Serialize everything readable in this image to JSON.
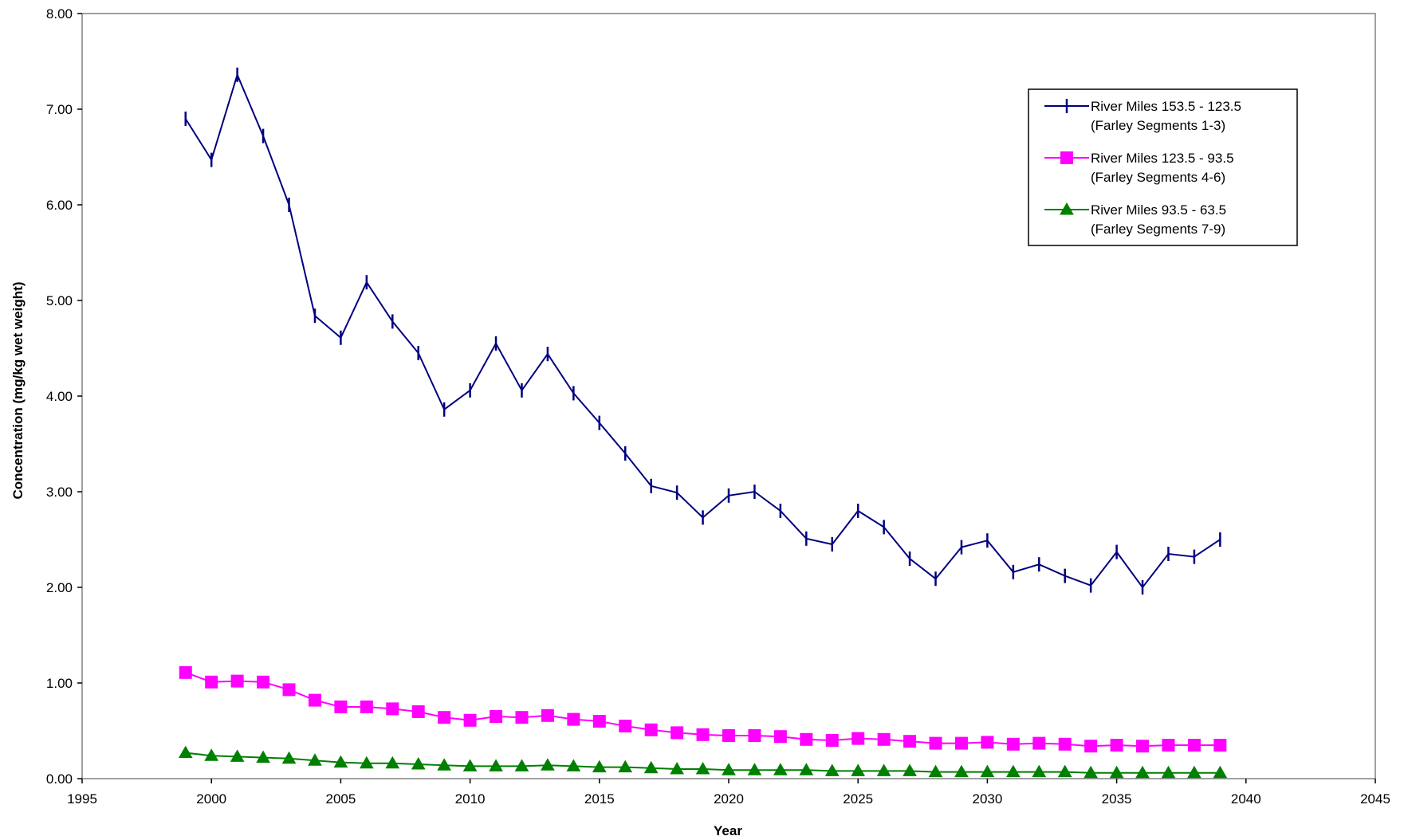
{
  "chart_data": {
    "type": "line",
    "title": "",
    "xlabel": "Year",
    "ylabel": "Concentration (mg/kg wet weight)",
    "xlim": [
      1995,
      2045
    ],
    "ylim": [
      0,
      8
    ],
    "x_ticks": [
      "1995",
      "2000",
      "2005",
      "2010",
      "2015",
      "2020",
      "2025",
      "2030",
      "2035",
      "2040",
      "2045"
    ],
    "y_ticks": [
      "0.00",
      "1.00",
      "2.00",
      "3.00",
      "4.00",
      "5.00",
      "6.00",
      "7.00",
      "8.00"
    ],
    "grid": false,
    "legend_position": "top-right",
    "x": [
      1999,
      2000,
      2001,
      2002,
      2003,
      2004,
      2005,
      2006,
      2007,
      2008,
      2009,
      2010,
      2011,
      2012,
      2013,
      2014,
      2015,
      2016,
      2017,
      2018,
      2019,
      2020,
      2021,
      2022,
      2023,
      2024,
      2025,
      2026,
      2027,
      2028,
      2029,
      2030,
      2031,
      2032,
      2033,
      2034,
      2035,
      2036,
      2037,
      2038,
      2039
    ],
    "series": [
      {
        "name_line1": "River Miles 153.5 - 123.5",
        "name_line2": "(Farley Segments 1-3)",
        "color": "#000080",
        "marker": "vbar",
        "values": [
          6.9,
          6.47,
          7.36,
          6.72,
          6.0,
          4.84,
          4.61,
          5.19,
          4.78,
          4.45,
          3.86,
          4.06,
          4.55,
          4.06,
          4.44,
          4.03,
          3.72,
          3.4,
          3.06,
          2.99,
          2.73,
          2.96,
          3.0,
          2.8,
          2.51,
          2.45,
          2.8,
          2.63,
          2.3,
          2.09,
          2.42,
          2.49,
          2.16,
          2.24,
          2.12,
          2.02,
          2.37,
          2.0,
          2.35,
          2.32,
          2.5
        ]
      },
      {
        "name_line1": "River Miles 123.5 - 93.5",
        "name_line2": "(Farley Segments 4-6)",
        "color": "#ff00ff",
        "marker": "square",
        "values": [
          1.11,
          1.01,
          1.02,
          1.01,
          0.93,
          0.82,
          0.75,
          0.75,
          0.73,
          0.7,
          0.64,
          0.61,
          0.65,
          0.64,
          0.66,
          0.62,
          0.6,
          0.55,
          0.51,
          0.48,
          0.46,
          0.45,
          0.45,
          0.44,
          0.41,
          0.4,
          0.42,
          0.41,
          0.39,
          0.37,
          0.37,
          0.38,
          0.36,
          0.37,
          0.36,
          0.34,
          0.35,
          0.34,
          0.35,
          0.35,
          0.35
        ]
      },
      {
        "name_line1": "River Miles 93.5 - 63.5",
        "name_line2": "(Farley Segments 7-9)",
        "color": "#008000",
        "marker": "triangle",
        "values": [
          0.27,
          0.24,
          0.23,
          0.22,
          0.21,
          0.19,
          0.17,
          0.16,
          0.16,
          0.15,
          0.14,
          0.13,
          0.13,
          0.13,
          0.14,
          0.13,
          0.12,
          0.12,
          0.11,
          0.1,
          0.1,
          0.09,
          0.09,
          0.09,
          0.09,
          0.08,
          0.08,
          0.08,
          0.08,
          0.07,
          0.07,
          0.07,
          0.07,
          0.07,
          0.07,
          0.06,
          0.06,
          0.06,
          0.06,
          0.06,
          0.06
        ]
      }
    ]
  }
}
